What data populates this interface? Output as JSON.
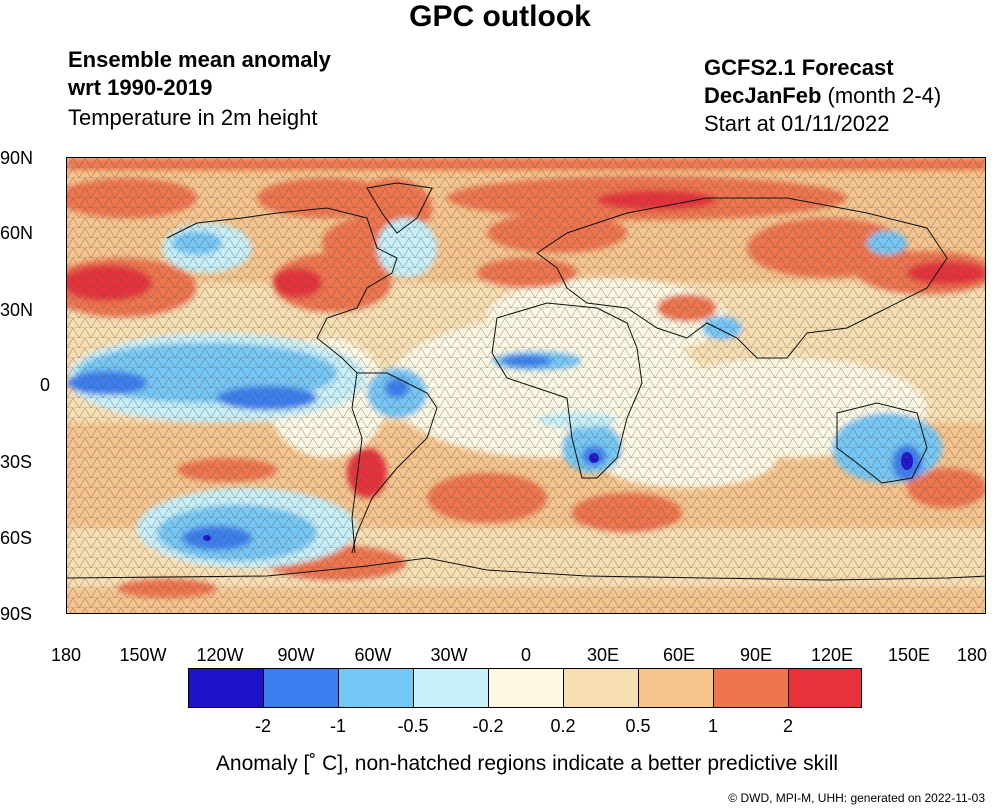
{
  "title": "GPC outlook",
  "left_header": {
    "line1": "Ensemble mean anomaly",
    "line2": "wrt 1990-2019",
    "line3": "Temperature in 2m height"
  },
  "right_header": {
    "line1": "GCFS2.1 Forecast",
    "season": "DecJanFeb",
    "months": "(month 2-4)",
    "start": "Start at 01/11/2022"
  },
  "lat_labels": [
    "90N",
    "60N",
    "30N",
    "0",
    "30S",
    "60S",
    "90S"
  ],
  "lon_labels": [
    "180",
    "150W",
    "120W",
    "90W",
    "60W",
    "30W",
    "0",
    "30E",
    "60E",
    "90E",
    "120E",
    "150E",
    "180"
  ],
  "colorbar": {
    "colors": [
      "#1f12cc",
      "#3b7ef0",
      "#74c7f5",
      "#c8f0f8",
      "#fdf9e4",
      "#f8dfb2",
      "#f6c58d",
      "#f0744d",
      "#e8313a"
    ],
    "tick_values": [
      "-2",
      "-1",
      "-0.5",
      "-0.2",
      "0.2",
      "0.5",
      "1",
      "2"
    ]
  },
  "units_label": "Anomaly [˚ C], non-hatched regions indicate a better predictive skill",
  "credit": "© DWD, MPI-M, UHH: generated on 2022-11-03"
}
